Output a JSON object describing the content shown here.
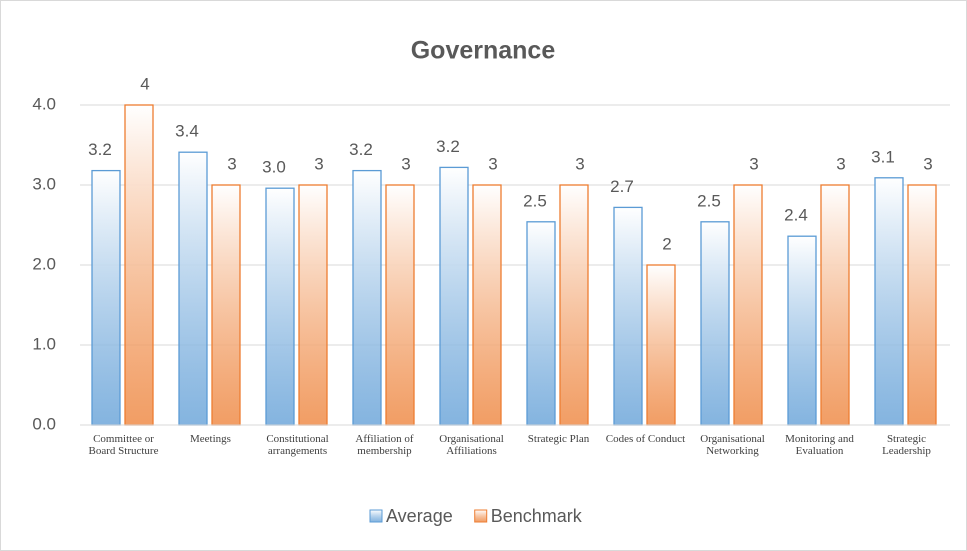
{
  "chart_data": {
    "type": "bar",
    "title": "Governance",
    "categories": [
      "Committee or Board Structure",
      "Meetings",
      "Constitutional arrangements",
      "Affiliation of membership",
      "Organisational Affiliations",
      "Strategic Plan",
      "Codes of Conduct",
      "Organisational Networking",
      "Monitoring and Evaluation",
      "Strategic Leadership"
    ],
    "series": [
      {
        "name": "Average",
        "color": "#5b9bd5",
        "values": [
          3.18,
          3.41,
          2.96,
          3.18,
          3.22,
          2.54,
          2.72,
          2.54,
          2.36,
          3.09
        ],
        "value_labels": [
          "3.2",
          "3.4",
          "3.0",
          "3.2",
          "3.2",
          "2.5",
          "2.7",
          "2.5",
          "2.4",
          "3.1"
        ]
      },
      {
        "name": "Benchmark",
        "color": "#ed7d31",
        "values": [
          4,
          3,
          3,
          3,
          3,
          3,
          2,
          3,
          3,
          3
        ]
      }
    ],
    "ylim": [
      0,
      4
    ],
    "yticks": [
      {
        "value": 0,
        "label": "0.0"
      },
      {
        "value": 1,
        "label": "1.0"
      },
      {
        "value": 2,
        "label": "2.0"
      },
      {
        "value": 3,
        "label": "3.0"
      },
      {
        "value": 4,
        "label": "4.0"
      }
    ],
    "grid": true,
    "legend": "bottom"
  }
}
